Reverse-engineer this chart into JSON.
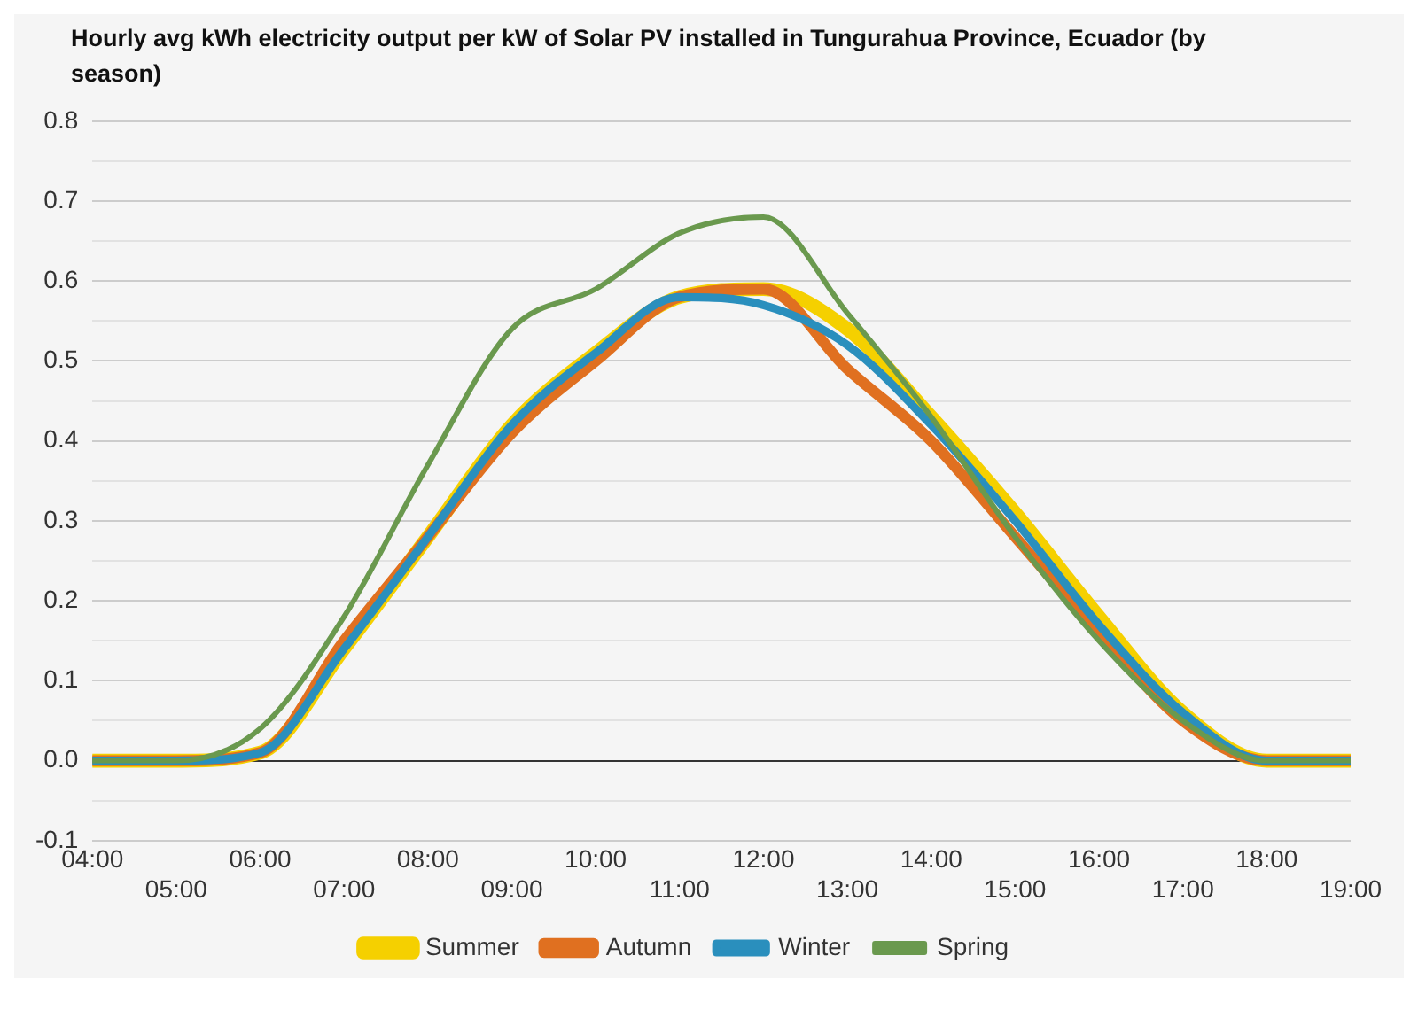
{
  "chart_data": {
    "type": "line",
    "title": "Hourly avg kWh electricity output per kW of Solar PV installed in Tungurahua Province, Ecuador (by season)",
    "categories": [
      "04:00",
      "05:00",
      "06:00",
      "07:00",
      "08:00",
      "09:00",
      "10:00",
      "11:00",
      "12:00",
      "13:00",
      "14:00",
      "15:00",
      "16:00",
      "17:00",
      "18:00",
      "19:00"
    ],
    "series": [
      {
        "name": "Summer",
        "color": "#f5d000",
        "values": [
          0,
          0,
          0.01,
          0.14,
          0.28,
          0.42,
          0.51,
          0.58,
          0.59,
          0.54,
          0.43,
          0.31,
          0.18,
          0.06,
          0,
          0
        ]
      },
      {
        "name": "Autumn",
        "color": "#e07020",
        "values": [
          0,
          0,
          0.01,
          0.15,
          0.28,
          0.41,
          0.5,
          0.58,
          0.59,
          0.49,
          0.4,
          0.28,
          0.16,
          0.05,
          0,
          0
        ]
      },
      {
        "name": "Winter",
        "color": "#2a8fbd",
        "values": [
          0,
          0,
          0.01,
          0.14,
          0.28,
          0.42,
          0.51,
          0.58,
          0.57,
          0.52,
          0.42,
          0.3,
          0.17,
          0.06,
          0,
          0
        ]
      },
      {
        "name": "Spring",
        "color": "#6a994e",
        "values": [
          0,
          0,
          0.04,
          0.18,
          0.37,
          0.54,
          0.59,
          0.66,
          0.68,
          0.56,
          0.43,
          0.28,
          0.15,
          0.05,
          0,
          0
        ]
      }
    ],
    "ylim": [
      -0.1,
      0.8
    ],
    "yticks": [
      -0.1,
      {
        "value": -0.05,
        "label": null
      },
      {
        "value": 0,
        "label": "0.0"
      },
      {
        "value": 0.05,
        "label": null
      },
      0.1,
      {
        "value": 0.15,
        "label": null
      },
      0.2,
      {
        "value": 0.25,
        "label": null
      },
      0.3,
      {
        "value": 0.35,
        "label": null
      },
      0.4,
      {
        "value": 0.45,
        "label": null
      },
      0.5,
      {
        "value": 0.55,
        "label": null
      },
      0.6,
      {
        "value": 0.65,
        "label": null
      },
      0.7,
      {
        "value": 0.75,
        "label": null
      },
      0.8
    ],
    "grid": "y",
    "legend": "bottom",
    "marker": "none",
    "line_style": "solid"
  }
}
